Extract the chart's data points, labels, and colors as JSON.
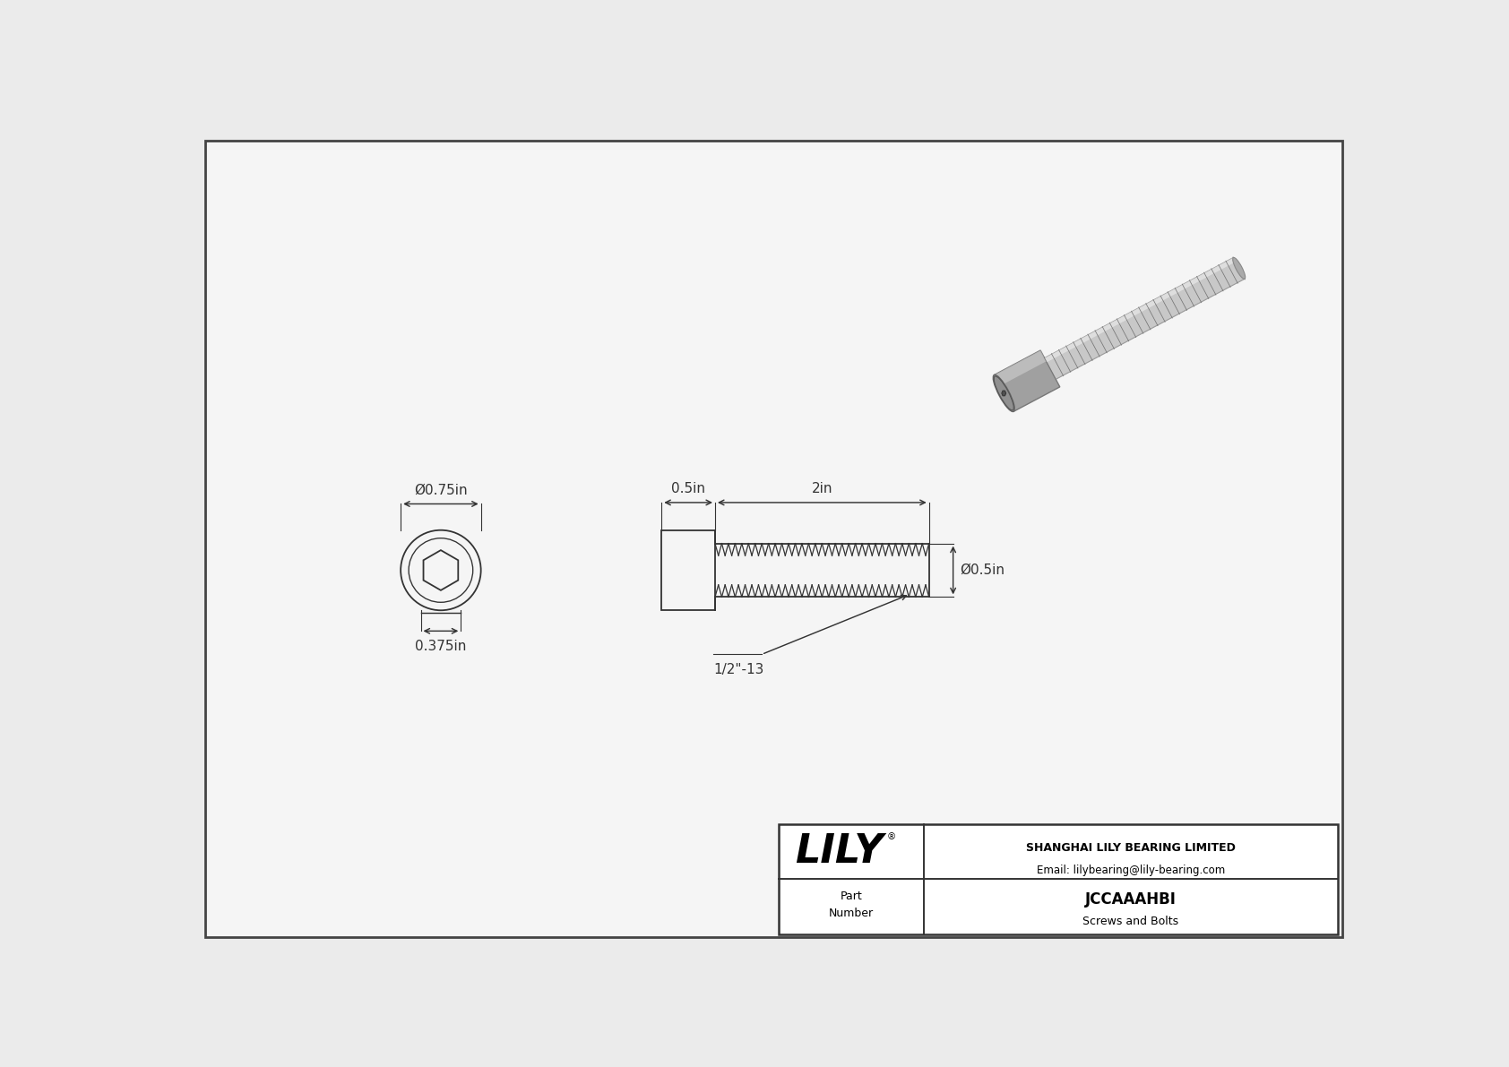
{
  "bg_color": "#ebebeb",
  "inner_bg": "#f5f5f5",
  "border_color": "#444444",
  "line_color": "#333333",
  "part_number": "JCCAAAHBI",
  "part_type": "Screws and Bolts",
  "company": "SHANGHAI LILY BEARING LIMITED",
  "email": "Email: lilybearing@lily-bearing.com",
  "logo_text": "LILY",
  "dim_head_diameter": "Ø0.75in",
  "dim_hex_diameter": "0.375in",
  "dim_head_length": "0.5in",
  "dim_shaft_length": "2in",
  "dim_shaft_diameter": "Ø0.5in",
  "dim_thread": "1/2\"-13",
  "font_size_dims": 11,
  "font_size_logo": 32
}
